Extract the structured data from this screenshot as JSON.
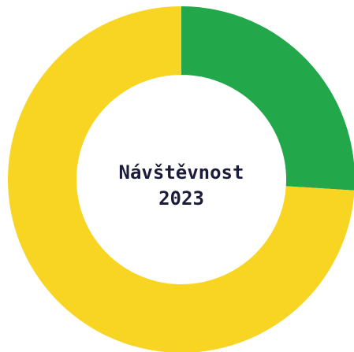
{
  "chart_data": {
    "type": "pie",
    "variant": "donut",
    "title": "Návštěvnost",
    "subtitle": "2023",
    "legend": "none",
    "slices": [
      {
        "value": 26,
        "color": "#22a84a"
      },
      {
        "value": 74,
        "color": "#f8d523"
      }
    ]
  }
}
